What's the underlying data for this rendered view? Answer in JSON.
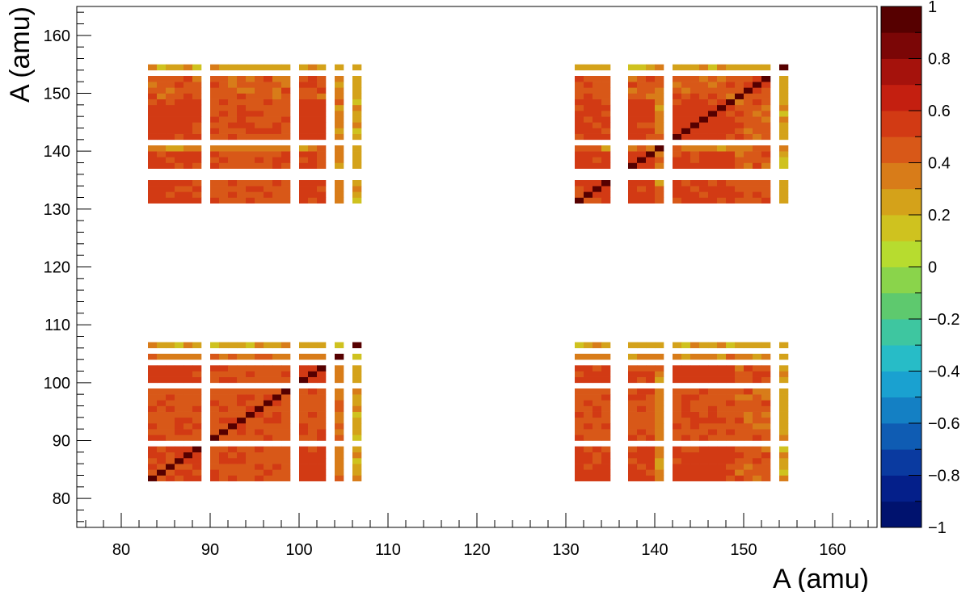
{
  "chart_data": {
    "type": "heatmap",
    "title": "",
    "xlabel": "A (amu)",
    "ylabel": "A (amu)",
    "xlim": [
      75,
      165
    ],
    "ylim": [
      75,
      165
    ],
    "x_ticks": [
      80,
      90,
      100,
      110,
      120,
      130,
      140,
      150,
      160
    ],
    "y_ticks": [
      80,
      90,
      100,
      110,
      120,
      130,
      140,
      150,
      160
    ],
    "colorbar": {
      "min": -1,
      "max": 1,
      "ticks": [
        1,
        0.8,
        0.6,
        0.4,
        0.2,
        0,
        -0.2,
        -0.4,
        -0.6,
        -0.8,
        -1
      ],
      "tick_labels": [
        "1",
        "0.8",
        "0.6",
        "0.4",
        "0.2",
        "0",
        "−0.2",
        "−0.4",
        "−0.6",
        "−0.8",
        "−1"
      ],
      "colors": [
        "#00126e",
        "#041f8a",
        "#0a3aa0",
        "#0f5cb3",
        "#1480c4",
        "#1aa1d0",
        "#27bcc7",
        "#3ec6a0",
        "#5ec96e",
        "#8ad44b",
        "#b7dc2f",
        "#cfc21f",
        "#d4a21a",
        "#d87c19",
        "#d85818",
        "#d23a14",
        "#c41f10",
        "#a5120c",
        "#7b0606",
        "#560000"
      ]
    },
    "mass_bins": [
      83,
      84,
      85,
      86,
      87,
      88,
      90,
      91,
      92,
      93,
      94,
      95,
      96,
      97,
      98,
      100,
      101,
      102,
      104,
      106,
      131,
      132,
      133,
      134,
      137,
      138,
      139,
      140,
      142,
      143,
      144,
      145,
      146,
      147,
      148,
      149,
      150,
      151,
      152,
      154
    ],
    "values_rule": {
      "diagonal": 1.0,
      "groups": [
        {
          "masses": [
            83,
            84,
            85,
            86,
            87,
            88
          ],
          "level": 0.5
        },
        {
          "masses": [
            90,
            91,
            92,
            93,
            94,
            95,
            96,
            97,
            98
          ],
          "level": 0.42
        },
        {
          "masses": [
            100,
            101,
            102
          ],
          "level": 0.52
        },
        {
          "masses": [
            104
          ],
          "level": 0.28
        },
        {
          "masses": [
            106
          ],
          "level": 0.18
        },
        {
          "masses": [
            131,
            132,
            133,
            134
          ],
          "level": 0.5
        },
        {
          "masses": [
            137,
            138,
            139
          ],
          "level": 0.48
        },
        {
          "masses": [
            140
          ],
          "level": 0.3
        },
        {
          "masses": [
            142,
            143,
            144,
            145,
            146,
            147,
            148
          ],
          "level": 0.5
        },
        {
          "masses": [
            149,
            150,
            151,
            152
          ],
          "level": 0.35
        },
        {
          "masses": [
            154
          ],
          "level": 0.16
        }
      ]
    }
  }
}
